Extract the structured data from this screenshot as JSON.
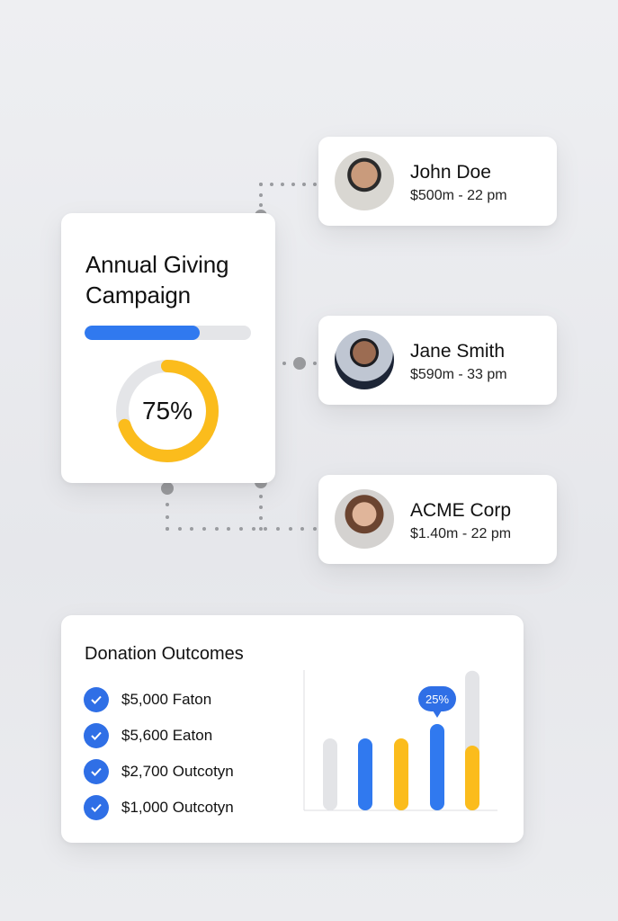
{
  "campaign": {
    "title_line1": "Annual Giving",
    "title_line2": "Campaign",
    "progress_fraction": 0.69,
    "donut_percent": 75,
    "donut_label": "75%"
  },
  "donors": [
    {
      "name": "John Doe",
      "meta": "$500m - 22 pm"
    },
    {
      "name": "Jane Smith",
      "meta": "$590m - 33 pm"
    },
    {
      "name": "ACME Corp",
      "meta": "$1.40m - 22 pm"
    }
  ],
  "outcomes": {
    "title": "Donation Outcomes",
    "items": [
      "$5,000 Faton",
      "$5,600 Eaton",
      "$2,700 Outcotyn",
      "$1,000 Outcotyn"
    ]
  },
  "colors": {
    "blue": "#3079ef",
    "yellow": "#fbbc1c",
    "gray": "#e3e4e7"
  },
  "chart_data": {
    "type": "bar",
    "ylim": [
      0,
      100
    ],
    "tooltip": "25%",
    "tooltip_bar": 3,
    "bars": [
      {
        "color": "gray",
        "value": 50
      },
      {
        "color": "blue",
        "value": 50
      },
      {
        "color": "yellow",
        "value": 50
      },
      {
        "color": "blue",
        "value": 60
      },
      {
        "color": "yellow",
        "value": 45,
        "track": 97
      }
    ]
  }
}
